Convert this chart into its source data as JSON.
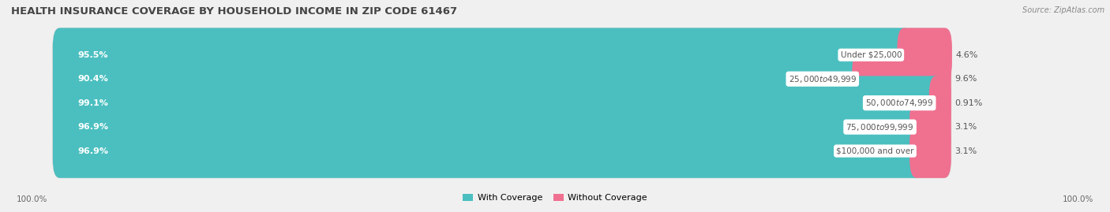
{
  "title": "HEALTH INSURANCE COVERAGE BY HOUSEHOLD INCOME IN ZIP CODE 61467",
  "source": "Source: ZipAtlas.com",
  "categories": [
    "Under $25,000",
    "$25,000 to $49,999",
    "$50,000 to $74,999",
    "$75,000 to $99,999",
    "$100,000 and over"
  ],
  "with_coverage": [
    95.5,
    90.4,
    99.1,
    96.9,
    96.9
  ],
  "without_coverage": [
    4.6,
    9.6,
    0.91,
    3.1,
    3.1
  ],
  "with_labels": [
    "95.5%",
    "90.4%",
    "99.1%",
    "96.9%",
    "96.9%"
  ],
  "without_labels": [
    "4.6%",
    "9.6%",
    "0.91%",
    "3.1%",
    "3.1%"
  ],
  "color_with": "#4bbfc0",
  "color_without": "#f07090",
  "background_color": "#f0f0f0",
  "bar_background": "#e2e2e2",
  "title_fontsize": 9.5,
  "source_fontsize": 7,
  "label_fontsize": 8,
  "legend_fontsize": 8,
  "bar_height": 0.65,
  "bottom_label": "100.0%"
}
